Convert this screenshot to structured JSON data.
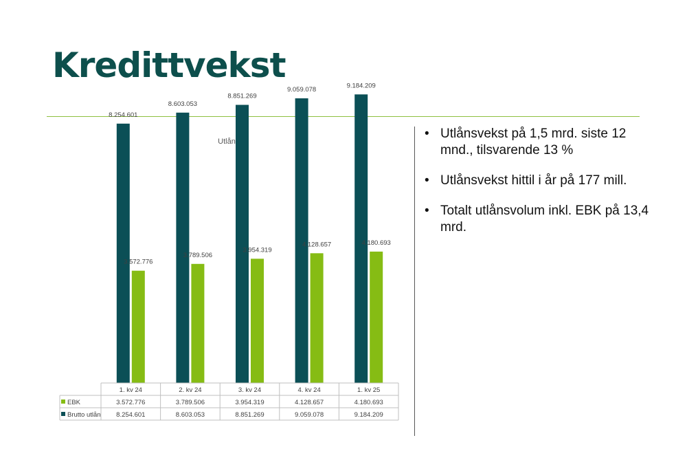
{
  "slide": {
    "title": "Kredittvekst",
    "bullets": [
      "Utlånsvekst på 1,5 mrd. siste 12 mnd., tilsvarende 13 %",
      "Utlånsvekst hittil i år på 177 mill.",
      "Totalt utlånsvolum inkl. EBK på 13,4 mrd."
    ]
  },
  "colors": {
    "title": "#0d4f4c",
    "accent_line": "#8dbf40",
    "brutto_utlan": "#0b4f56",
    "ebk": "#86bc14"
  },
  "chart_data": {
    "type": "bar",
    "title": "Utlån",
    "categories": [
      "1. kv 24",
      "2. kv 24",
      "3. kv 24",
      "4. kv 24",
      "1. kv 25"
    ],
    "series": [
      {
        "name": "Brutto utlån",
        "color": "#0b4f56",
        "values": [
          8254601,
          8603053,
          8851269,
          9059078,
          9184209
        ],
        "labels": [
          "8.254.601",
          "8.603.053",
          "8.851.269",
          "9.059.078",
          "9.184.209"
        ]
      },
      {
        "name": "EBK",
        "color": "#86bc14",
        "values": [
          3572776,
          3789506,
          3954319,
          4128657,
          4180693
        ],
        "labels": [
          "3.572.776",
          "3.789.506",
          "3.954.319",
          "4.128.657",
          "4.180.693"
        ]
      }
    ],
    "data_table": {
      "rows": [
        {
          "series": "EBK",
          "values": [
            "3.572.776",
            "3.789.506",
            "3.954.319",
            "4.128.657",
            "4.180.693"
          ]
        },
        {
          "series": "Brutto utlån",
          "values": [
            "8.254.601",
            "8.603.053",
            "8.851.269",
            "9.059.078",
            "9.184.209"
          ]
        }
      ]
    },
    "ylim": [
      0,
      10000000
    ],
    "grid": false,
    "legend": "data-table"
  }
}
